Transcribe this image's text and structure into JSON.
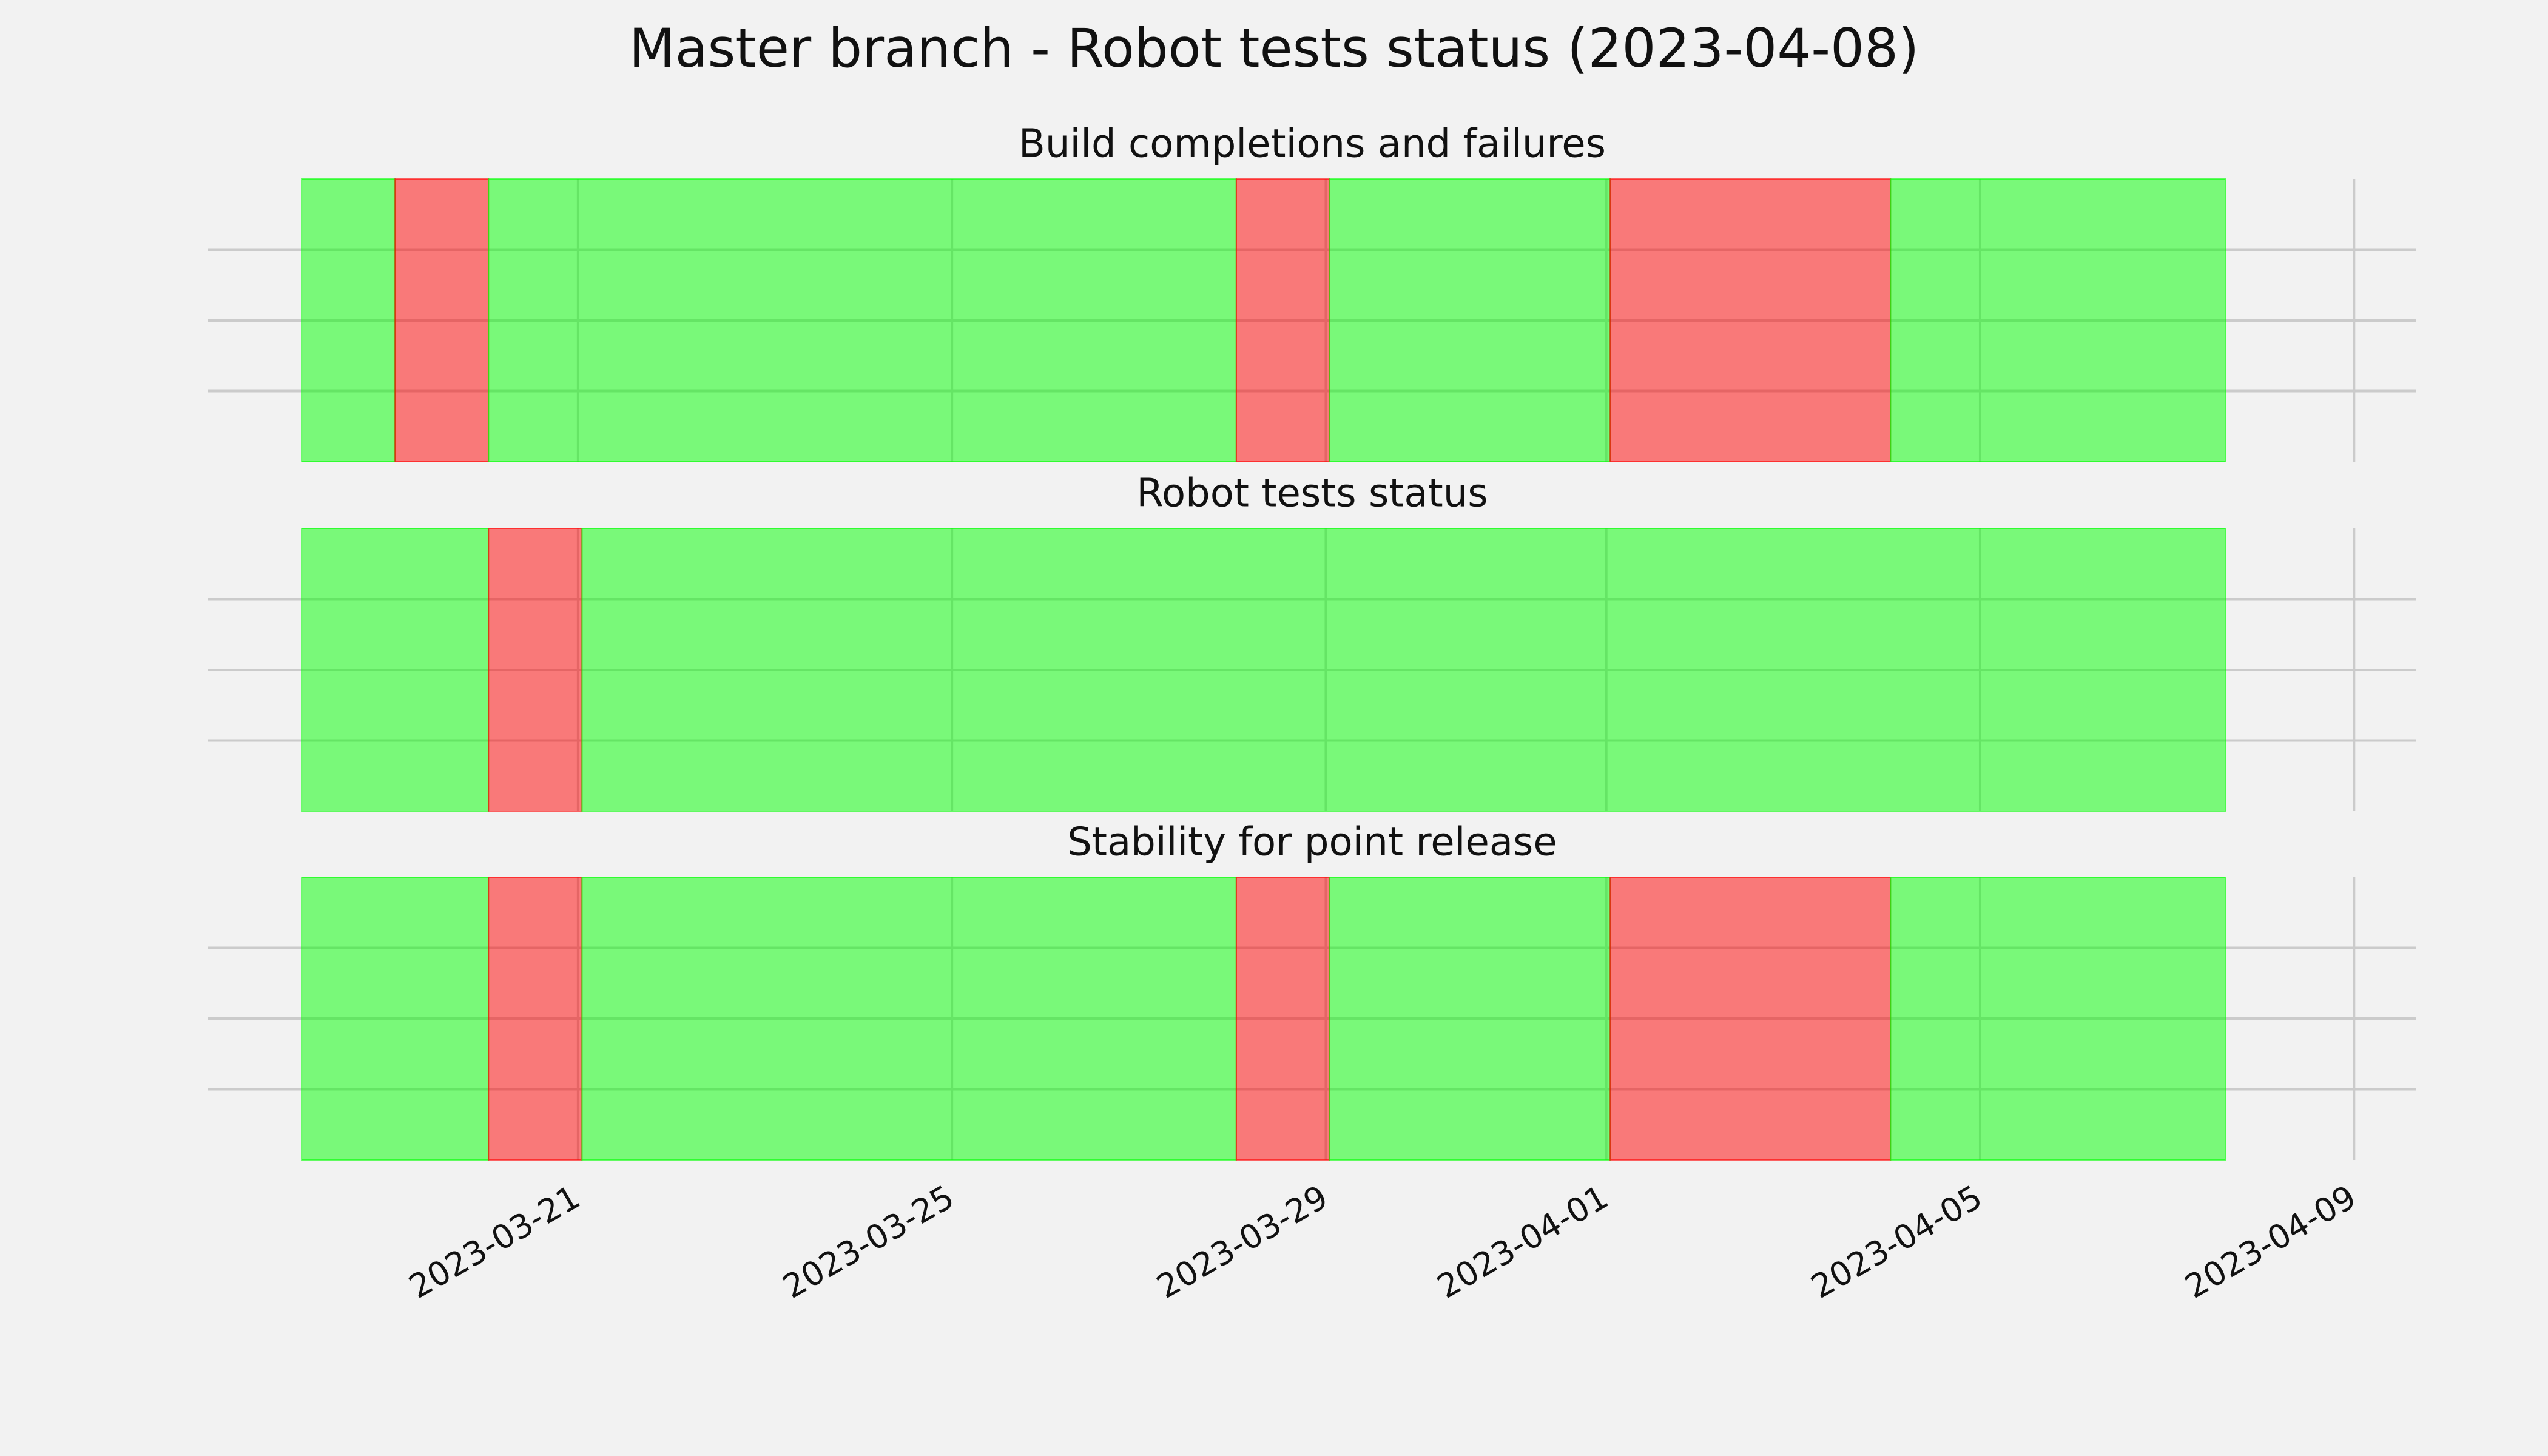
{
  "title": "Master branch - Robot tests status (2023-04-08)",
  "chart_data": [
    {
      "type": "timeline",
      "title": "Build completions and failures",
      "spans": [
        {
          "start": "2023-03-18T01:00",
          "end": "2023-03-19T01:00",
          "color": "#00ff00"
        },
        {
          "start": "2023-03-19T01:00",
          "end": "2023-03-20T01:00",
          "color": "#ff0000"
        },
        {
          "start": "2023-03-20T01:00",
          "end": "2023-03-28T01:00",
          "color": "#00ff00"
        },
        {
          "start": "2023-03-28T01:00",
          "end": "2023-03-29T01:00",
          "color": "#ff0000"
        },
        {
          "start": "2023-03-29T01:00",
          "end": "2023-04-01T01:00",
          "color": "#00ff00"
        },
        {
          "start": "2023-04-01T01:00",
          "end": "2023-04-04T01:00",
          "color": "#ff0000"
        },
        {
          "start": "2023-04-04T01:00",
          "end": "2023-04-07T15:00",
          "color": "#00ff00"
        }
      ],
      "xlim": [
        "2023-03-17T01:00",
        "2023-04-09T16:00"
      ],
      "xticks": [
        "2023-03-21",
        "2023-03-25",
        "2023-03-29",
        "2023-04-01",
        "2023-04-05",
        "2023-04-09"
      ],
      "ylim": [
        0,
        1
      ],
      "yticks": [
        0.25,
        0.5,
        0.75
      ],
      "grid": true
    },
    {
      "type": "timeline",
      "title": "Robot tests status",
      "spans": [
        {
          "start": "2023-03-18T01:00",
          "end": "2023-03-20T01:00",
          "color": "#00ff00"
        },
        {
          "start": "2023-03-20T01:00",
          "end": "2023-03-21T01:00",
          "color": "#ff0000"
        },
        {
          "start": "2023-03-21T01:00",
          "end": "2023-04-07T15:00",
          "color": "#00ff00"
        }
      ],
      "xlim": [
        "2023-03-17T01:00",
        "2023-04-09T16:00"
      ],
      "xticks": [
        "2023-03-21",
        "2023-03-25",
        "2023-03-29",
        "2023-04-01",
        "2023-04-05",
        "2023-04-09"
      ],
      "ylim": [
        0,
        1
      ],
      "yticks": [
        0.25,
        0.5,
        0.75
      ],
      "grid": true
    },
    {
      "type": "timeline",
      "title": "Stability for point release",
      "spans": [
        {
          "start": "2023-03-18T01:00",
          "end": "2023-03-20T01:00",
          "color": "#00ff00"
        },
        {
          "start": "2023-03-20T01:00",
          "end": "2023-03-21T01:00",
          "color": "#ff0000"
        },
        {
          "start": "2023-03-21T01:00",
          "end": "2023-03-28T01:00",
          "color": "#00ff00"
        },
        {
          "start": "2023-03-28T01:00",
          "end": "2023-03-29T01:00",
          "color": "#ff0000"
        },
        {
          "start": "2023-03-29T01:00",
          "end": "2023-04-01T01:00",
          "color": "#00ff00"
        },
        {
          "start": "2023-04-01T01:00",
          "end": "2023-04-04T01:00",
          "color": "#ff0000"
        },
        {
          "start": "2023-04-04T01:00",
          "end": "2023-04-07T15:00",
          "color": "#00ff00"
        }
      ],
      "xlim": [
        "2023-03-17T01:00",
        "2023-04-09T16:00"
      ],
      "xticks": [
        "2023-03-21",
        "2023-03-25",
        "2023-03-29",
        "2023-04-01",
        "2023-04-05",
        "2023-04-09"
      ],
      "ylim": [
        0,
        1
      ],
      "yticks": [
        0.25,
        0.5,
        0.75
      ],
      "grid": true
    }
  ]
}
